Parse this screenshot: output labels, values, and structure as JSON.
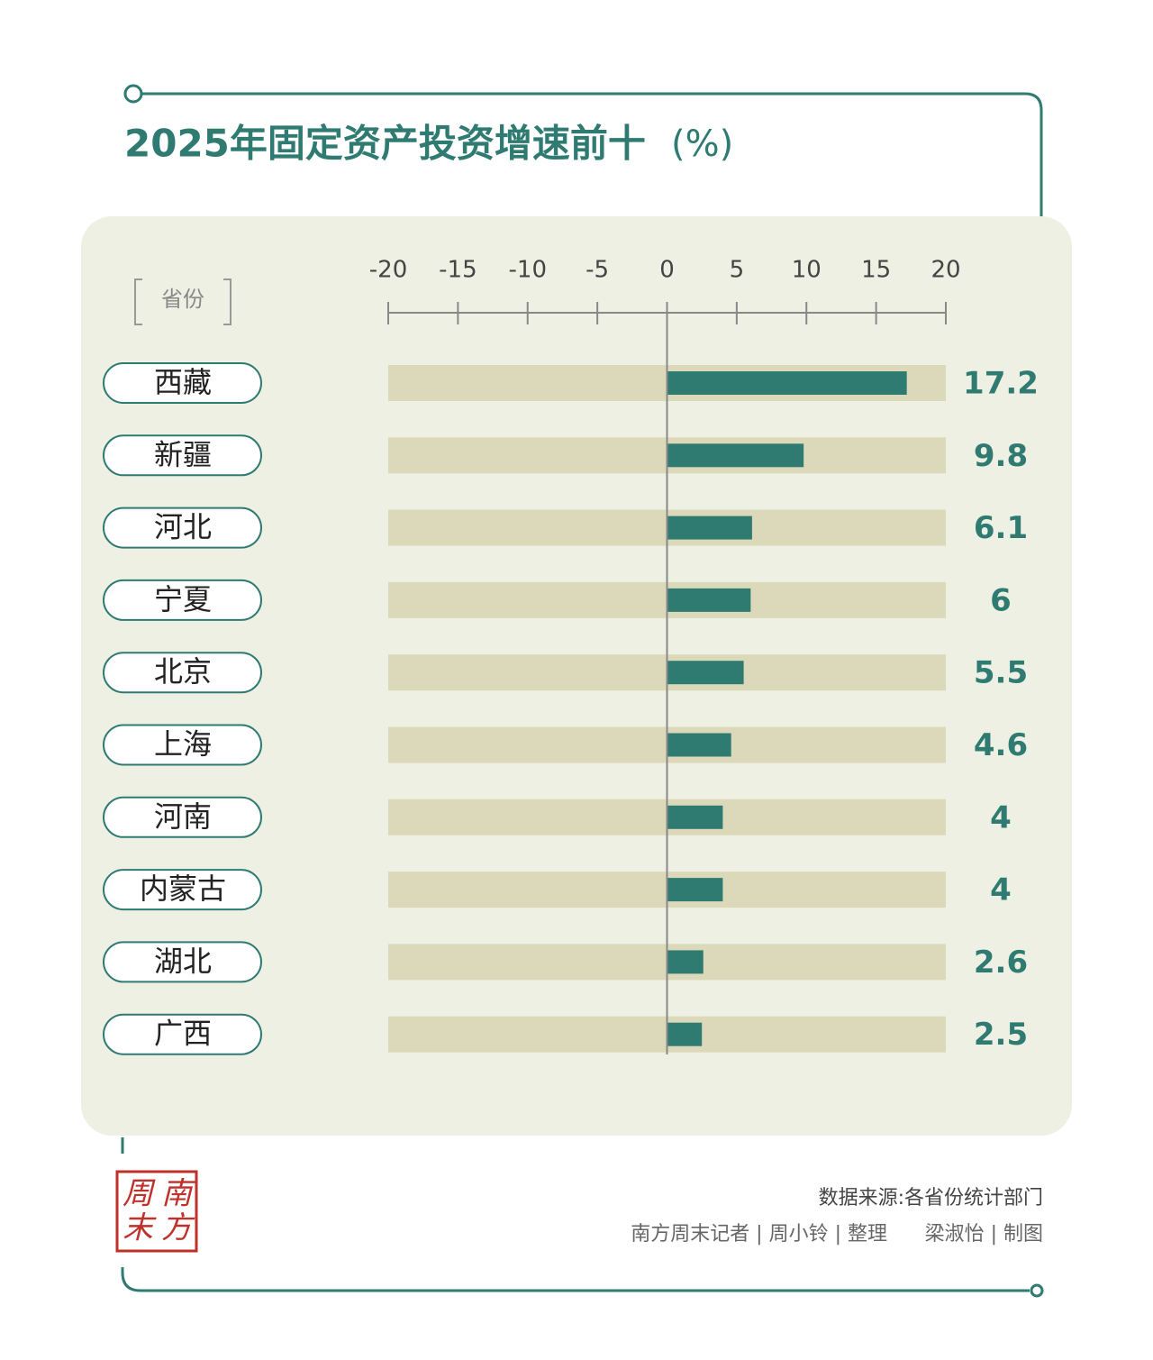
{
  "chart_data": {
    "type": "bar",
    "orientation": "horizontal",
    "title": "2025年固定资产投资增速前十",
    "title_unit": "(%)",
    "category_header": "省份",
    "categories": [
      "西藏",
      "新疆",
      "河北",
      "宁夏",
      "北京",
      "上海",
      "河南",
      "内蒙古",
      "湖北",
      "广西"
    ],
    "values": [
      17.2,
      9.8,
      6.1,
      6,
      5.5,
      4.6,
      4,
      4,
      2.6,
      2.5
    ],
    "color": "#2f7b72",
    "xlim": [
      -20,
      20
    ],
    "xticks": [
      -20,
      -15,
      -10,
      -5,
      0,
      5,
      10,
      15,
      20
    ],
    "source": "数据来源:各省份统计部门",
    "credits": [
      "南方周末记者 | 周小铃 | 整理",
      "梁淑怡 | 制图"
    ],
    "logo": [
      "南",
      "方",
      "周",
      "末"
    ]
  }
}
